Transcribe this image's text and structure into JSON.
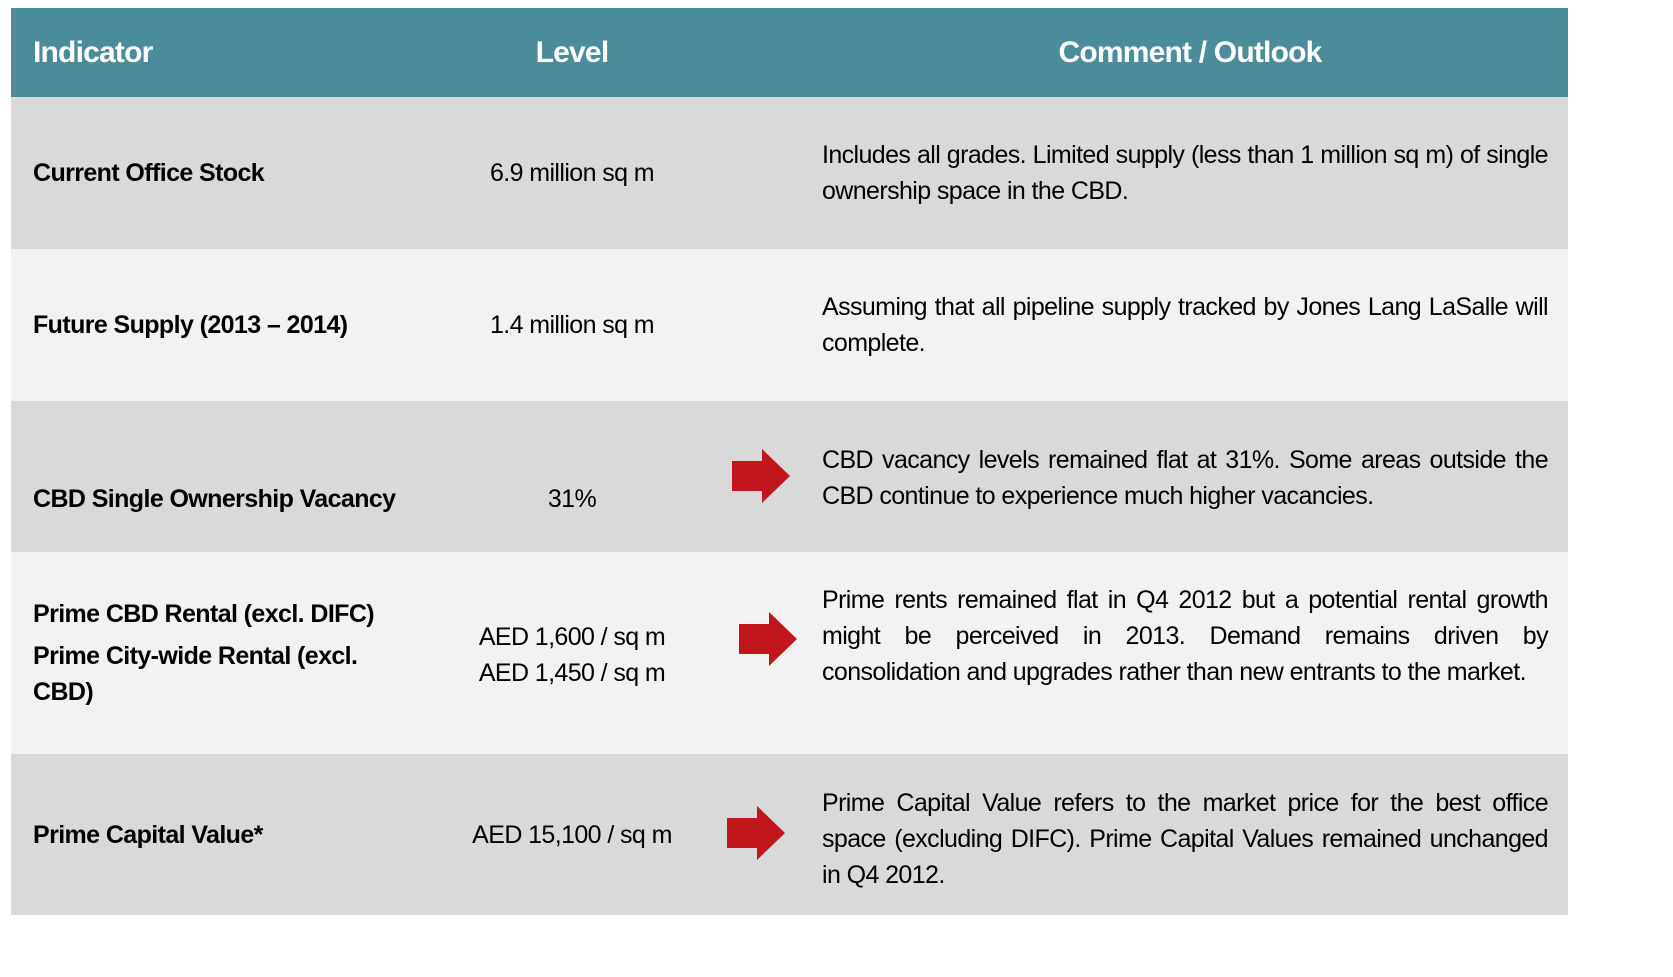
{
  "header": [
    "Indicator",
    "Level",
    "Comment / Outlook"
  ],
  "rows": [
    {
      "indicator": [
        "Current Office Stock"
      ],
      "level": [
        "6.9 million sq m"
      ],
      "comment": "Includes all grades. Limited supply (less than 1 million sq m) of single ownership space in the CBD."
    },
    {
      "indicator": [
        "Future Supply (2013 – 2014)"
      ],
      "level": [
        "1.4 million sq m"
      ],
      "comment": "Assuming that all pipeline supply tracked by Jones Lang LaSalle will complete."
    },
    {
      "indicator": [
        "CBD Single Ownership Vacancy"
      ],
      "level": [
        "31%"
      ],
      "comment": "CBD vacancy levels remained flat at 31%. Some areas outside the CBD continue to experience much higher vacancies."
    },
    {
      "indicator": [
        "Prime CBD Rental (excl. DIFC)",
        "Prime City-wide Rental (excl. CBD)"
      ],
      "level": [
        "AED 1,600 / sq m",
        "AED 1,450 / sq m"
      ],
      "comment": "Prime rents remained flat in Q4 2012 but a potential rental growth might be perceived in 2013. Demand remains driven by consolidation and upgrades rather than new entrants to the market."
    },
    {
      "indicator": [
        "Prime Capital Value*"
      ],
      "level": [
        "AED 15,100 / sq m"
      ],
      "comment": "Prime Capital Value refers to the market price for the best office space (excluding DIFC). Prime Capital Values remained unchanged in Q4 2012."
    }
  ]
}
